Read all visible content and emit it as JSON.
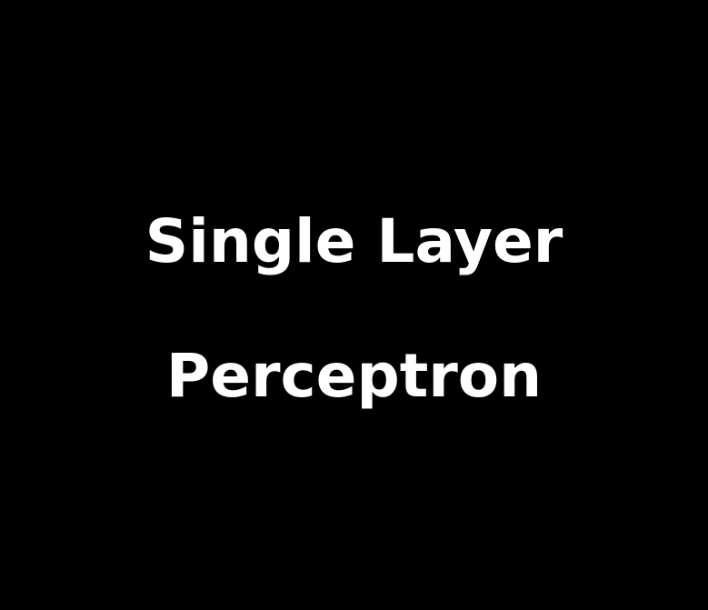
{
  "title": {
    "line1": "Single Layer",
    "line2": "Perceptron"
  },
  "colors": {
    "background": "#000000",
    "text": "#ffffff"
  }
}
